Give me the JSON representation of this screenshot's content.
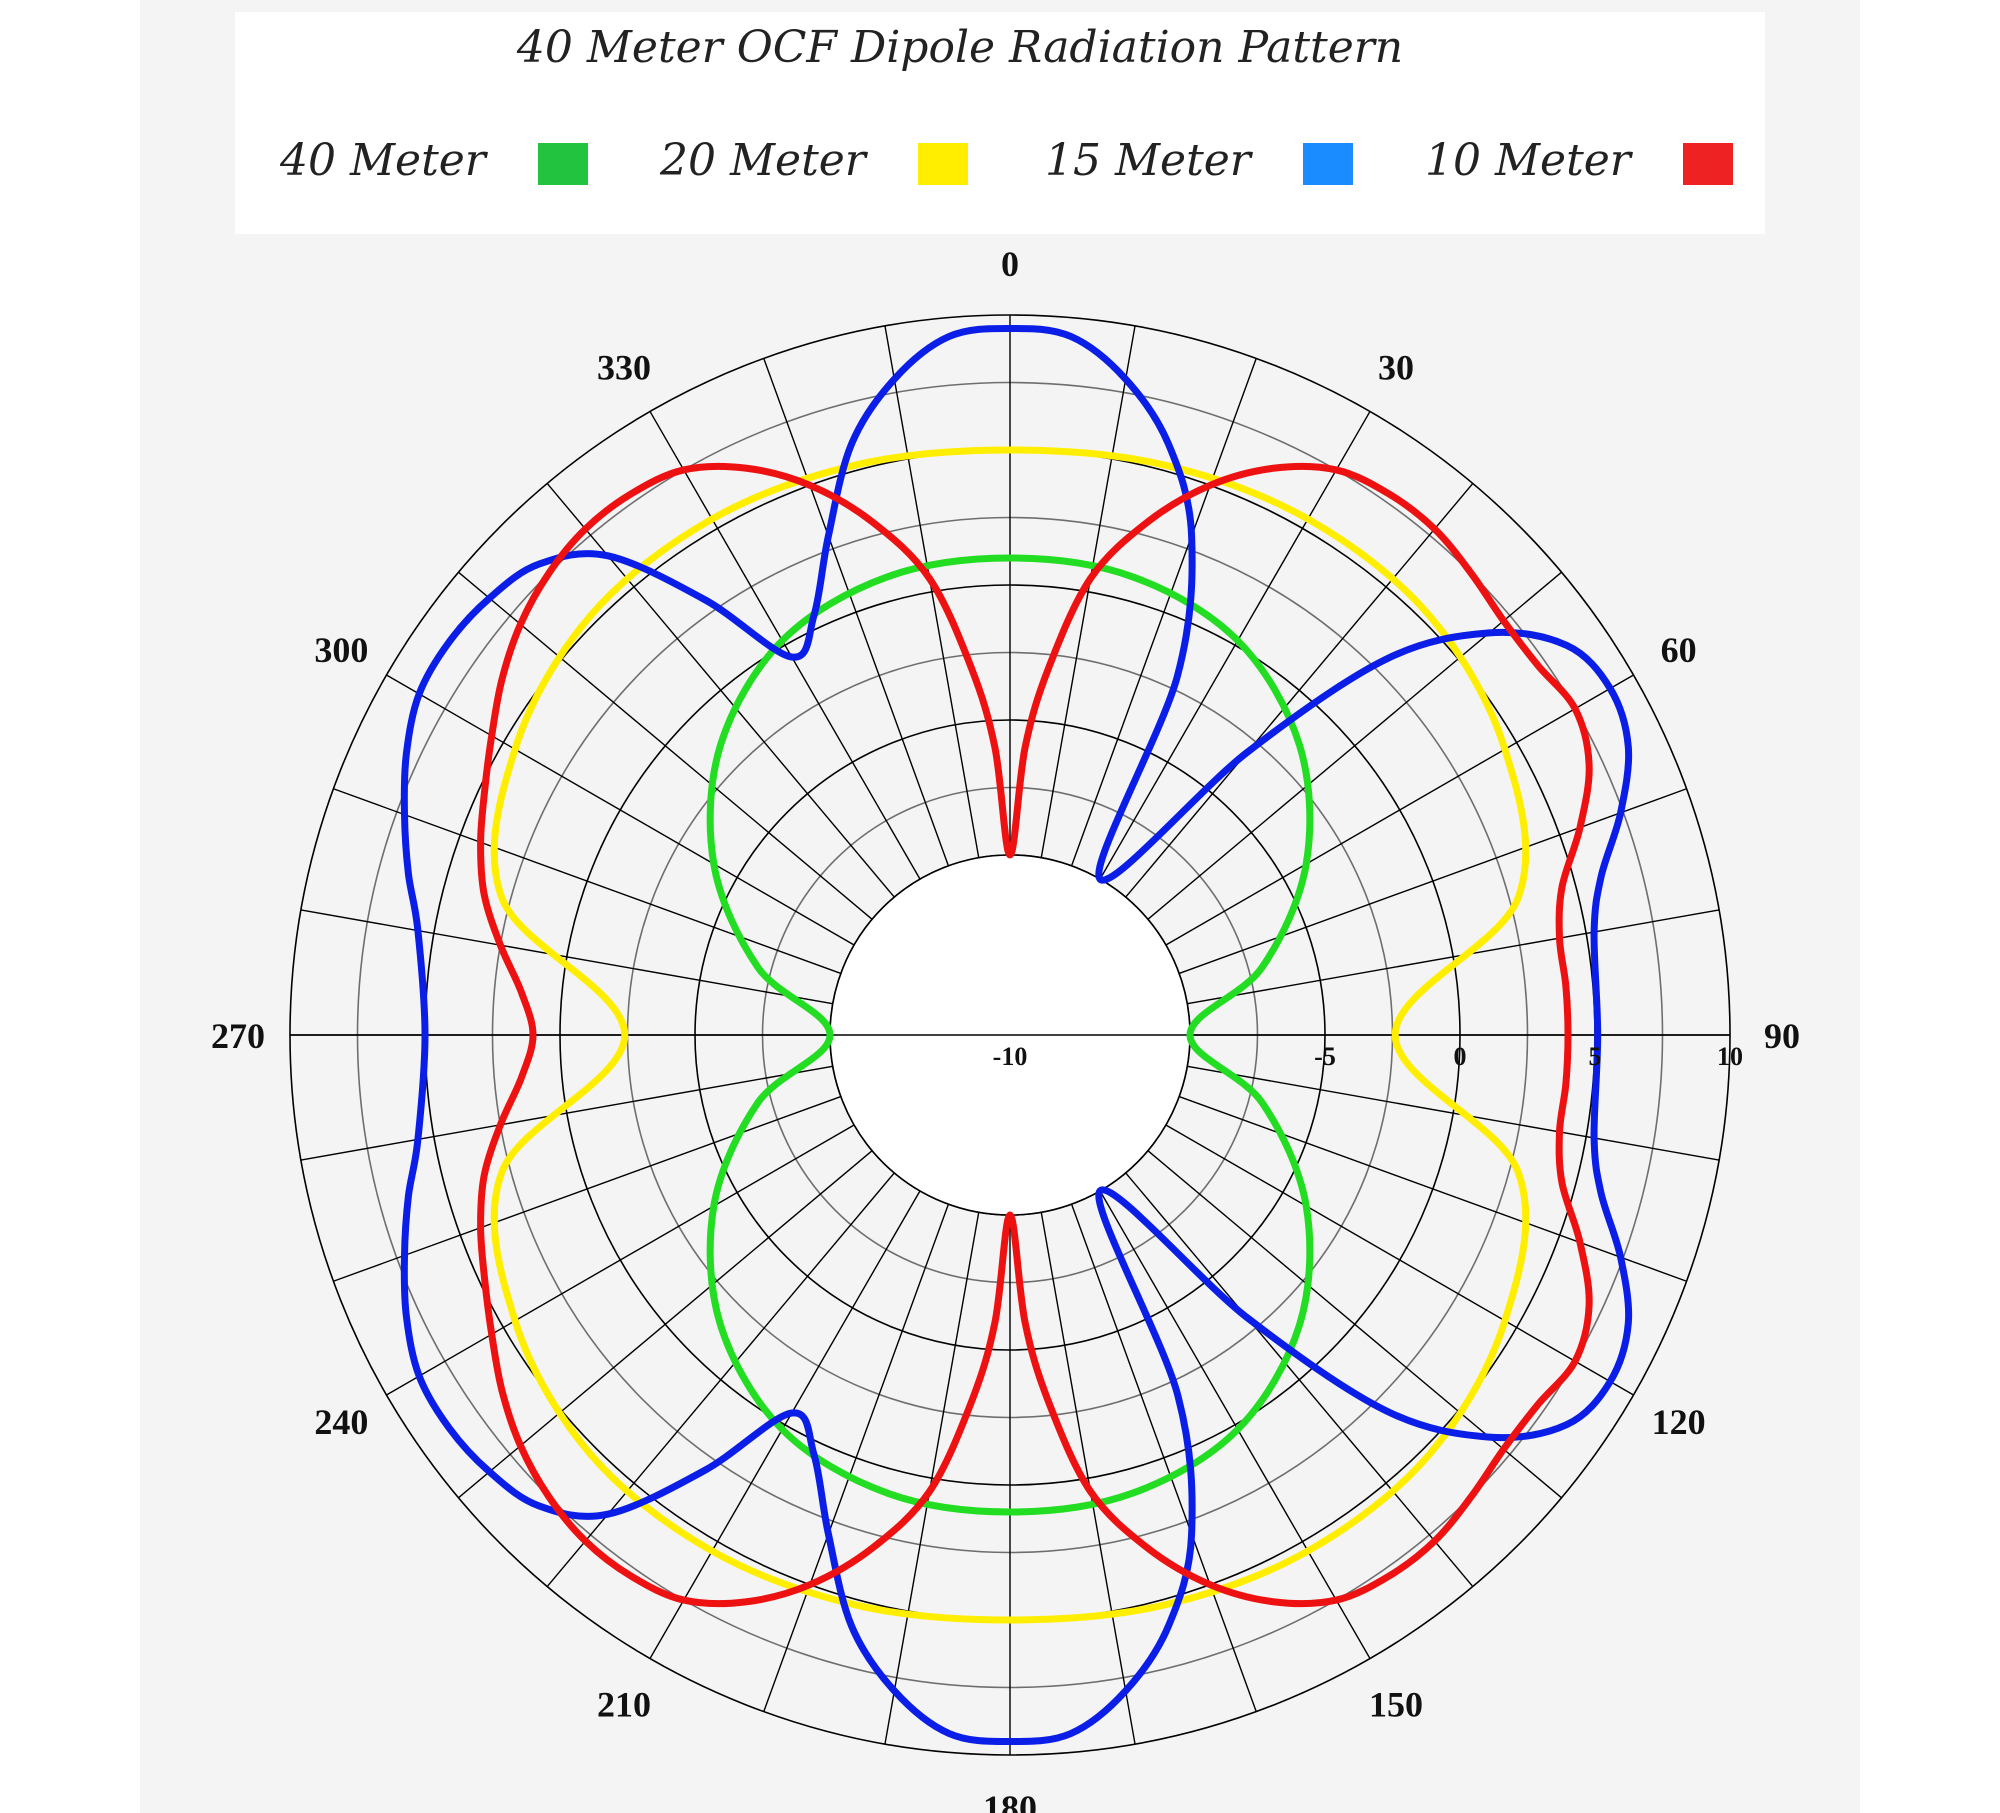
{
  "chart_data": {
    "type": "polar-line",
    "title": "40 Meter OCF Dipole Radiation Pattern",
    "angle_unit": "degrees",
    "angle_direction": "clockwise",
    "angle_zero": "top",
    "angle_ticks": [
      0,
      30,
      60,
      90,
      120,
      150,
      180,
      210,
      240,
      270,
      300,
      330
    ],
    "angle_tick_labels": [
      "0",
      "30",
      "60",
      "90",
      "120",
      "150",
      "180",
      "210",
      "240",
      "270",
      "300",
      "330"
    ],
    "radial_range": [
      -10,
      10
    ],
    "radial_ticks": [
      -10,
      -5,
      0,
      5,
      10
    ],
    "radial_tick_labels": [
      "-10",
      "-5",
      "0",
      "5",
      "10"
    ],
    "grid": true,
    "legend_position": "top",
    "series": [
      {
        "name": "40 Meter",
        "legend_color": "#22c43f",
        "line_color": "#22dd22",
        "theta": [
          0,
          15,
          30,
          45,
          60,
          75,
          90,
          105,
          120,
          135,
          150,
          165,
          180,
          195,
          210,
          225,
          240,
          255,
          270,
          285,
          300,
          315,
          330,
          345
        ],
        "r": [
          1.0,
          0.9,
          0.2,
          -1.5,
          -4.0,
          -7.0,
          -10.0,
          -7.0,
          -4.0,
          -1.5,
          0.2,
          0.9,
          1.0,
          0.9,
          0.2,
          -1.5,
          -4.0,
          -7.0,
          -10.0,
          -7.0,
          -4.0,
          -1.5,
          0.2,
          0.9
        ]
      },
      {
        "name": "20 Meter",
        "legend_color": "#ffee00",
        "line_color": "#ffee00",
        "theta": [
          0,
          15,
          30,
          45,
          60,
          75,
          90,
          105,
          120,
          135,
          150,
          165,
          180,
          195,
          210,
          225,
          240,
          255,
          270,
          285,
          300,
          315,
          330,
          345
        ],
        "r": [
          5.0,
          5.2,
          5.4,
          5.3,
          4.5,
          2.8,
          -2.4,
          2.8,
          4.5,
          5.3,
          5.4,
          5.2,
          5.0,
          5.2,
          5.4,
          5.3,
          4.5,
          2.8,
          -2.4,
          2.8,
          4.5,
          5.3,
          5.4,
          5.2
        ]
      },
      {
        "name": "15 Meter",
        "legend_color": "#1a8cff",
        "line_color": "#0b1ee8",
        "theta": [
          0,
          5,
          10,
          15,
          20,
          25,
          30,
          40,
          45,
          50,
          55,
          60,
          65,
          70,
          75,
          80,
          90,
          100,
          105,
          110,
          115,
          120,
          125,
          130,
          135,
          140,
          150,
          155,
          160,
          165,
          170,
          175,
          180,
          185,
          190,
          195,
          200,
          205,
          210,
          215,
          220,
          225,
          230,
          235,
          240,
          245,
          250,
          255,
          260,
          270,
          280,
          285,
          290,
          295,
          300,
          305,
          310,
          315,
          320,
          325,
          330,
          335,
          340,
          345,
          350,
          355
        ],
        "r": [
          9.5,
          9.3,
          8.0,
          6.0,
          3.0,
          -2.0,
          -10.0,
          -3.0,
          3.0,
          6.5,
          8.5,
          9.0,
          8.6,
          7.4,
          6.0,
          5.3,
          5.1,
          5.3,
          6.0,
          7.4,
          8.6,
          9.0,
          8.5,
          6.5,
          3.0,
          -3.0,
          -10.0,
          -2.0,
          3.0,
          6.0,
          8.0,
          9.3,
          9.5,
          9.3,
          8.0,
          6.0,
          3.0,
          0.5,
          -0.5,
          3.0,
          6.5,
          8.0,
          8.5,
          8.7,
          8.6,
          8.0,
          7.2,
          6.4,
          5.6,
          5.0,
          5.6,
          6.4,
          7.2,
          8.0,
          8.6,
          8.7,
          8.5,
          8.0,
          6.5,
          3.0,
          -0.5,
          0.5,
          3.0,
          6.0,
          8.0,
          9.3
        ]
      },
      {
        "name": "10 Meter",
        "legend_color": "#ee2222",
        "line_color": "#ee1111",
        "theta": [
          0,
          3,
          6,
          10,
          15,
          20,
          25,
          30,
          35,
          40,
          45,
          50,
          55,
          60,
          65,
          70,
          75,
          80,
          85,
          90,
          95,
          100,
          105,
          110,
          115,
          120,
          125,
          130,
          135,
          140,
          145,
          150,
          155,
          160,
          165,
          170,
          174,
          177,
          180,
          183,
          186,
          190,
          195,
          200,
          205,
          210,
          215,
          220,
          225,
          230,
          235,
          240,
          245,
          250,
          255,
          260,
          265,
          270,
          275,
          280,
          285,
          290,
          295,
          300,
          305,
          310,
          315,
          320,
          325,
          330,
          335,
          340,
          345,
          350,
          354,
          357
        ],
        "r": [
          -10.0,
          -6.0,
          -3.0,
          0.5,
          3.0,
          5.0,
          6.5,
          7.5,
          7.8,
          7.8,
          7.5,
          7.2,
          7.2,
          7.5,
          7.0,
          5.8,
          4.5,
          4.0,
          4.0,
          4.0,
          4.0,
          4.0,
          4.5,
          5.8,
          7.0,
          7.5,
          7.2,
          7.2,
          7.5,
          7.8,
          7.8,
          7.5,
          6.5,
          5.0,
          3.0,
          0.5,
          -3.0,
          -6.0,
          -10.0,
          -6.0,
          -3.0,
          0.5,
          3.0,
          5.0,
          6.5,
          7.5,
          7.8,
          7.8,
          7.5,
          7.0,
          6.3,
          5.5,
          4.8,
          4.2,
          3.5,
          2.5,
          1.5,
          1.0,
          1.5,
          2.5,
          3.5,
          4.2,
          4.8,
          5.5,
          6.3,
          7.0,
          7.5,
          7.8,
          7.8,
          7.5,
          6.5,
          5.0,
          3.0,
          0.5,
          -3.0,
          -6.0
        ]
      }
    ]
  }
}
